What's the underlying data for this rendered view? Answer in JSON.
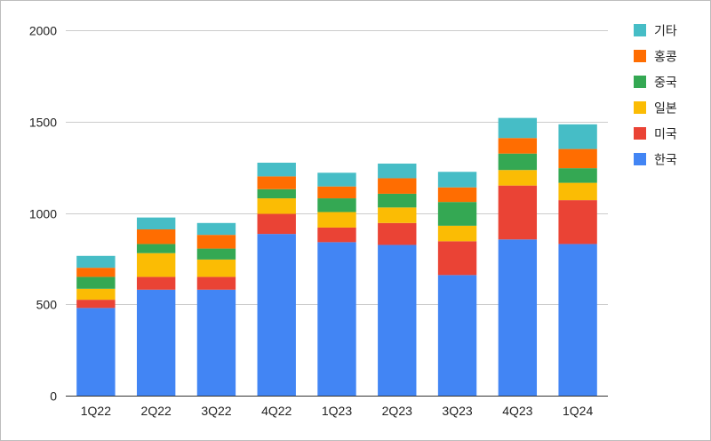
{
  "chart_data": {
    "type": "bar",
    "stacked": true,
    "categories": [
      "1Q22",
      "2Q22",
      "3Q22",
      "4Q22",
      "1Q23",
      "2Q23",
      "3Q23",
      "4Q23",
      "1Q24"
    ],
    "series": [
      {
        "name": "한국",
        "color": "#4285f4",
        "values": [
          480,
          580,
          580,
          885,
          840,
          825,
          660,
          855,
          830
        ]
      },
      {
        "name": "미국",
        "color": "#ea4335",
        "values": [
          45,
          70,
          70,
          110,
          80,
          120,
          185,
          295,
          240
        ]
      },
      {
        "name": "일본",
        "color": "#fbbc04",
        "values": [
          60,
          130,
          95,
          85,
          85,
          85,
          85,
          85,
          95
        ]
      },
      {
        "name": "중국",
        "color": "#34a853",
        "values": [
          65,
          50,
          60,
          50,
          75,
          75,
          130,
          90,
          80
        ]
      },
      {
        "name": "홍콩",
        "color": "#ff6d01",
        "values": [
          50,
          80,
          75,
          70,
          65,
          85,
          80,
          85,
          105
        ]
      },
      {
        "name": "기타",
        "color": "#46bdc6",
        "values": [
          65,
          65,
          65,
          75,
          75,
          80,
          85,
          110,
          135
        ]
      }
    ],
    "ylim": [
      0,
      2000
    ],
    "yticks": [
      0,
      500,
      1000,
      1500,
      2000
    ],
    "grid": true,
    "legend_position": "right",
    "legend_order": [
      "기타",
      "홍콩",
      "중국",
      "일본",
      "미국",
      "한국"
    ],
    "title": "",
    "xlabel": "",
    "ylabel": ""
  }
}
